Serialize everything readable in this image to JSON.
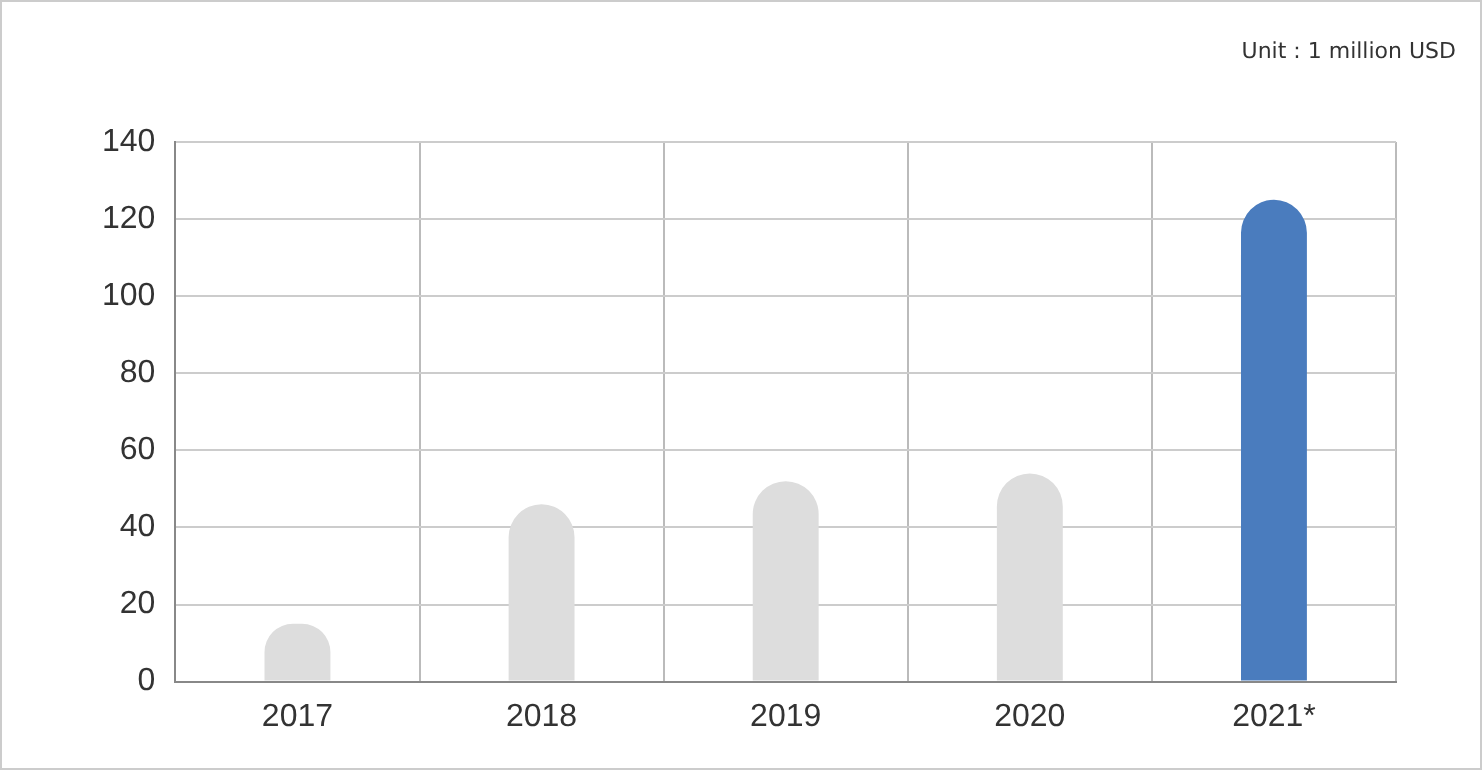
{
  "chart_data": {
    "type": "bar",
    "categories": [
      "2017",
      "2018",
      "2019",
      "2020",
      "2021*"
    ],
    "values": [
      15,
      46,
      52,
      54,
      125
    ],
    "colors": [
      "#dddddd",
      "#dddddd",
      "#dddddd",
      "#dddddd",
      "#4a7cbe"
    ],
    "ylim": [
      0,
      140
    ],
    "yticks": [
      0,
      20,
      40,
      60,
      80,
      100,
      120,
      140
    ],
    "grid": true,
    "legend": false,
    "annotations": [
      "Unit : 1 million USD"
    ]
  }
}
